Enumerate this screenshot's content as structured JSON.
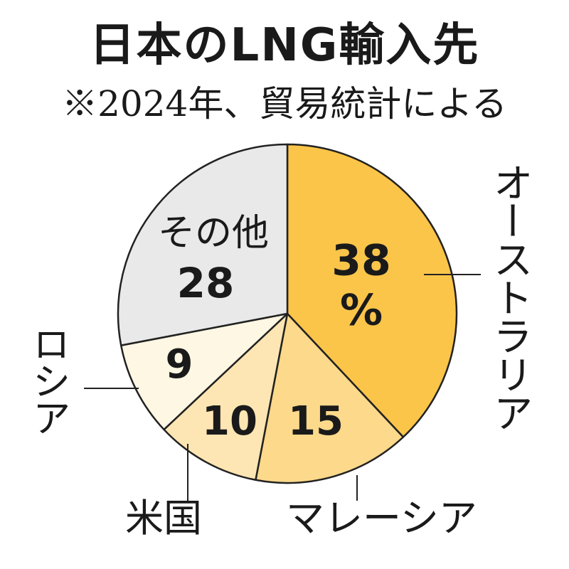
{
  "chart_data": {
    "type": "pie",
    "title": "日本のLNG輸入先",
    "subtitle": "※2024年、貿易統計による",
    "unit": "%",
    "categories": [
      "オーストラリア",
      "マレーシア",
      "米国",
      "ロシア",
      "その他"
    ],
    "values": [
      38,
      15,
      10,
      9,
      28
    ],
    "data_labels": [
      "38",
      "15",
      "10",
      "9",
      "28"
    ],
    "colors": [
      "#fbc54a",
      "#fcd98b",
      "#fde6b3",
      "#fef7e3",
      "#e9e9e9"
    ],
    "start": "12 o'clock, clockwise"
  }
}
